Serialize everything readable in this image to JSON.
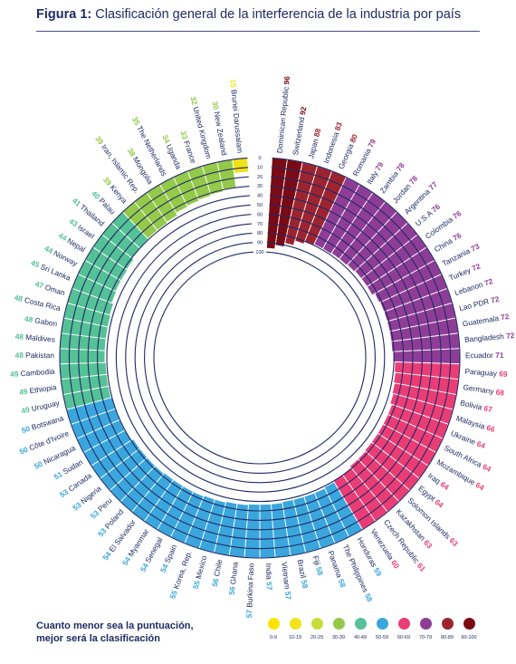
{
  "figure": {
    "label": "Figura 1:",
    "title": "Clasificación general de la interferencia de la industria por país"
  },
  "footnote": {
    "line1": "Cuanto menor sea la puntuación,",
    "line2": "mejor será la clasificación"
  },
  "legend": [
    {
      "label": "0-9",
      "color": "#ffe400"
    },
    {
      "label": "10-19",
      "color": "#f2e21a"
    },
    {
      "label": "20-29",
      "color": "#c9dc3a"
    },
    {
      "label": "30-39",
      "color": "#94c94a"
    },
    {
      "label": "40-49",
      "color": "#55c196"
    },
    {
      "label": "50-59",
      "color": "#3aa6dd"
    },
    {
      "label": "60-69",
      "color": "#ea3d76"
    },
    {
      "label": "70-79",
      "color": "#8e3d97"
    },
    {
      "label": "80-89",
      "color": "#9c2430"
    },
    {
      "label": "90-100",
      "color": "#7a0a14"
    }
  ],
  "chart_data": {
    "type": "radial-bar",
    "scale_ticks": [
      "0",
      "10",
      "20",
      "30",
      "40",
      "50",
      "60",
      "70",
      "80",
      "90",
      "100"
    ],
    "countries": [
      {
        "name": "Dominican Republic",
        "score": 96
      },
      {
        "name": "Switzerland",
        "score": 92
      },
      {
        "name": "Japan",
        "score": 88
      },
      {
        "name": "Indonesia",
        "score": 83
      },
      {
        "name": "Georgia",
        "score": 80
      },
      {
        "name": "Romania",
        "score": 79
      },
      {
        "name": "Italy",
        "score": 79
      },
      {
        "name": "Zambia",
        "score": 78
      },
      {
        "name": "Jordan",
        "score": 78
      },
      {
        "name": "Argentina",
        "score": 77
      },
      {
        "name": "U.S.A",
        "score": 76
      },
      {
        "name": "Colombia",
        "score": 76
      },
      {
        "name": "China",
        "score": 76
      },
      {
        "name": "Tanzania",
        "score": 73
      },
      {
        "name": "Turkey",
        "score": 72
      },
      {
        "name": "Lebanon",
        "score": 72
      },
      {
        "name": "Lao PDR",
        "score": 72
      },
      {
        "name": "Guatemala",
        "score": 72
      },
      {
        "name": "Bangladesh",
        "score": 72
      },
      {
        "name": "Ecuador",
        "score": 71
      },
      {
        "name": "Paraguay",
        "score": 69
      },
      {
        "name": "Germany",
        "score": 68
      },
      {
        "name": "Bolivia",
        "score": 67
      },
      {
        "name": "Malaysia",
        "score": 66
      },
      {
        "name": "Ukraine",
        "score": 64
      },
      {
        "name": "South Africa",
        "score": 64
      },
      {
        "name": "Mozambique",
        "score": 64
      },
      {
        "name": "Iraq",
        "score": 64
      },
      {
        "name": "Egypt",
        "score": 64
      },
      {
        "name": "Solomon Islands",
        "score": 63
      },
      {
        "name": "Kazakhstan",
        "score": 63
      },
      {
        "name": "Czech Republic",
        "score": 61
      },
      {
        "name": "Venezuela",
        "score": 60
      },
      {
        "name": "Honduras",
        "score": 59
      },
      {
        "name": "The Philippines",
        "score": 58
      },
      {
        "name": "Panama",
        "score": 58
      },
      {
        "name": "Fiji",
        "score": 58
      },
      {
        "name": "Brazil",
        "score": 58
      },
      {
        "name": "Vietnam",
        "score": 57
      },
      {
        "name": "India",
        "score": 57
      },
      {
        "name": "Burkina Faso",
        "score": 57
      },
      {
        "name": "Ghana",
        "score": 56
      },
      {
        "name": "Chile",
        "score": 56
      },
      {
        "name": "Mexico",
        "score": 55
      },
      {
        "name": "Korea, Rep.",
        "score": 55
      },
      {
        "name": "Spain",
        "score": 54
      },
      {
        "name": "Senegal",
        "score": 54
      },
      {
        "name": "Myanmar",
        "score": 54
      },
      {
        "name": "El Salvador",
        "score": 54
      },
      {
        "name": "Poland",
        "score": 53
      },
      {
        "name": "Peru",
        "score": 53
      },
      {
        "name": "Nigeria",
        "score": 53
      },
      {
        "name": "Canada",
        "score": 53
      },
      {
        "name": "Sudan",
        "score": 51
      },
      {
        "name": "Nicaragua",
        "score": 50
      },
      {
        "name": "Côte d'Ivoire",
        "score": 50
      },
      {
        "name": "Botswana",
        "score": 50
      },
      {
        "name": "Uruguay",
        "score": 49
      },
      {
        "name": "Ethiopia",
        "score": 49
      },
      {
        "name": "Cambodia",
        "score": 49
      },
      {
        "name": "Pakistan",
        "score": 48
      },
      {
        "name": "Maldives",
        "score": 48
      },
      {
        "name": "Gabon",
        "score": 48
      },
      {
        "name": "Costa Rica",
        "score": 48
      },
      {
        "name": "Oman",
        "score": 47
      },
      {
        "name": "Sri Lanka",
        "score": 45
      },
      {
        "name": "Norway",
        "score": 44
      },
      {
        "name": "Nepal",
        "score": 44
      },
      {
        "name": "Israel",
        "score": 43
      },
      {
        "name": "Thailand",
        "score": 41
      },
      {
        "name": "Palau",
        "score": 40
      },
      {
        "name": "Kenya",
        "score": 39
      },
      {
        "name": "Iran, Islamic Rep.",
        "score": 39
      },
      {
        "name": "Mongolia",
        "score": 38
      },
      {
        "name": "The Netherlands",
        "score": 35
      },
      {
        "name": "Uganda",
        "score": 34
      },
      {
        "name": "France",
        "score": 33
      },
      {
        "name": "United Kingdom",
        "score": 32
      },
      {
        "name": "New Zealand",
        "score": 30
      },
      {
        "name": "Brunei Darussalam",
        "score": 15
      }
    ]
  }
}
